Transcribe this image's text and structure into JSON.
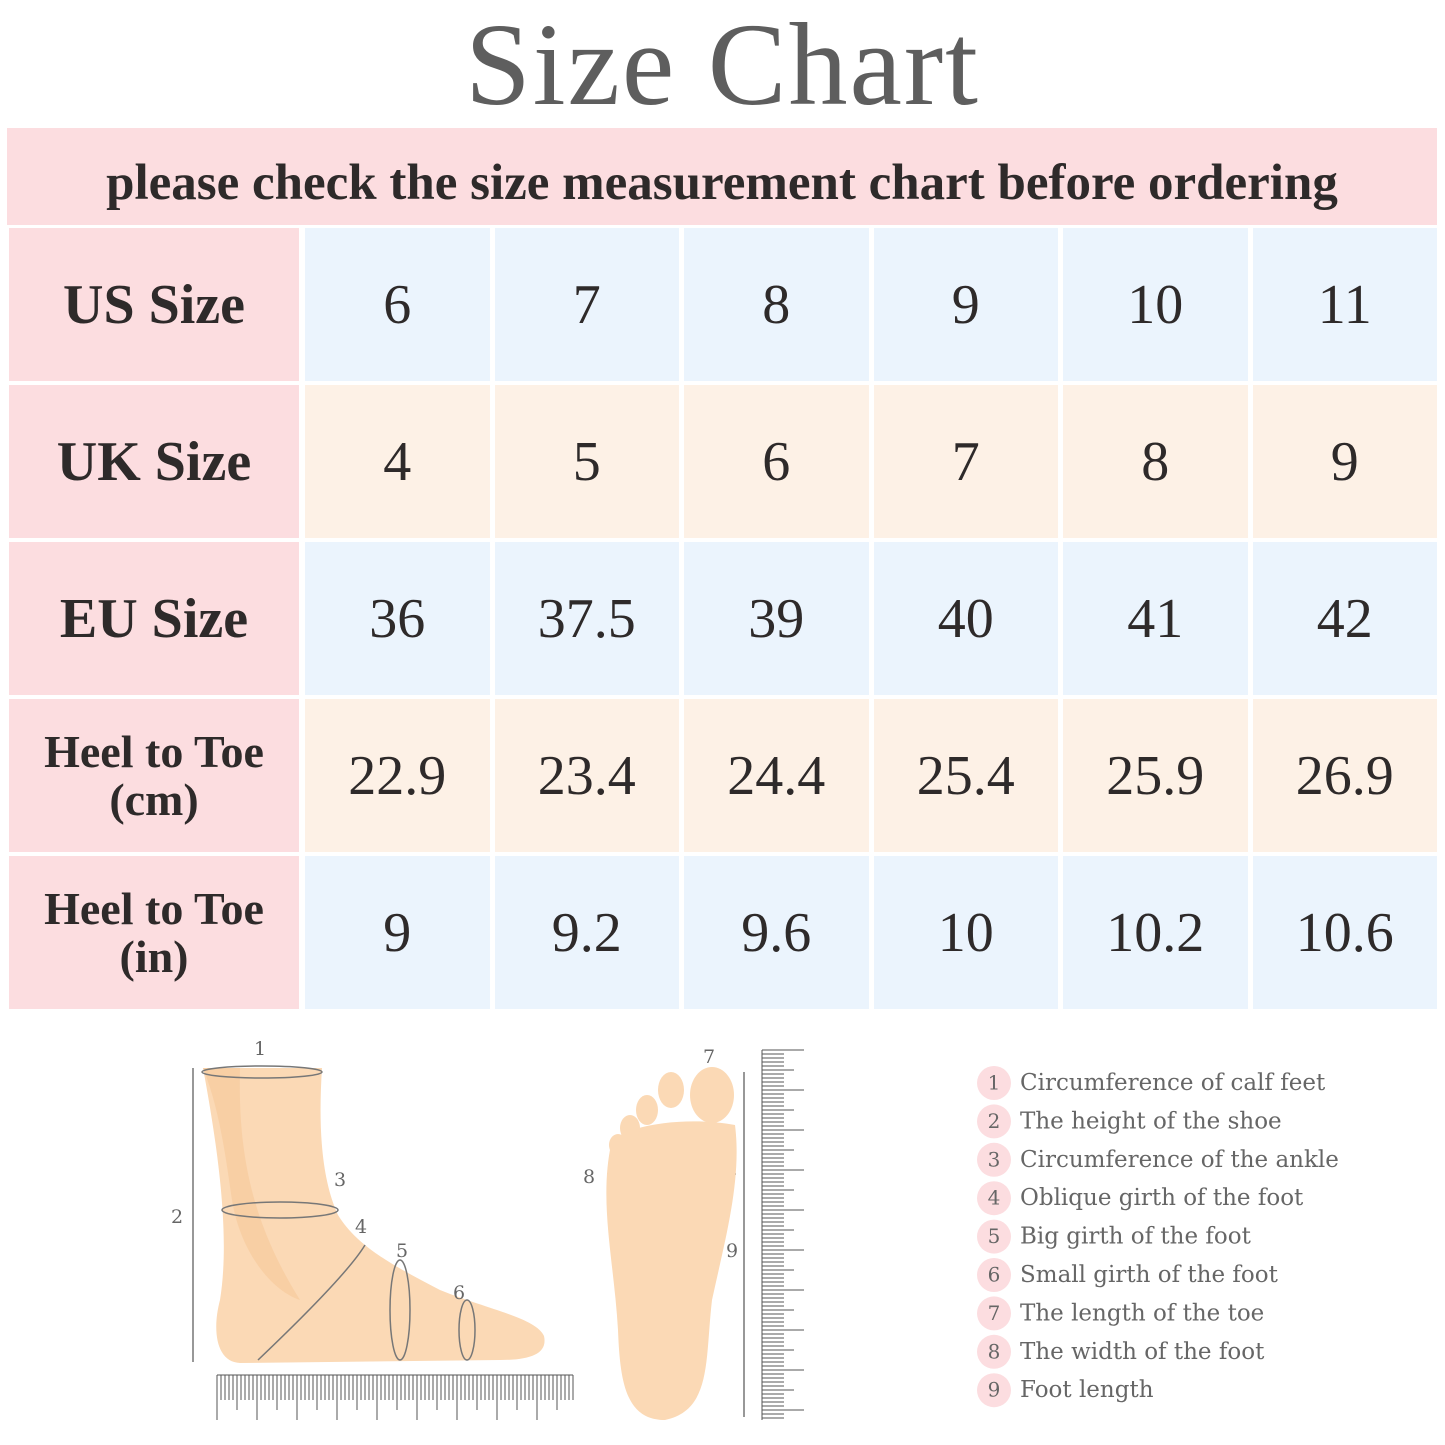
{
  "title": "Size  Chart",
  "subtitle": "please check the size measurement chart before ordering",
  "table": {
    "rows": [
      {
        "label": "US Size",
        "values": [
          "6",
          "7",
          "8",
          "9",
          "10",
          "11"
        ]
      },
      {
        "label": "UK Size",
        "values": [
          "4",
          "5",
          "6",
          "7",
          "8",
          "9"
        ]
      },
      {
        "label": "EU Size",
        "values": [
          "36",
          "37.5",
          "39",
          "40",
          "41",
          "42"
        ]
      },
      {
        "label": "Heel to Toe (cm)",
        "values": [
          "22.9",
          "23.4",
          "24.4",
          "25.4",
          "25.9",
          "26.9"
        ]
      },
      {
        "label": "Heel to Toe (in)",
        "values": [
          "9",
          "9.2",
          "9.6",
          "10",
          "10.2",
          "10.6"
        ]
      }
    ]
  },
  "legend": [
    {
      "number": "1",
      "text": "Circumference of calf feet"
    },
    {
      "number": "2",
      "text": "The height of the shoe"
    },
    {
      "number": "3",
      "text": "Circumference of the ankle"
    },
    {
      "number": "4",
      "text": "Oblique girth of the foot"
    },
    {
      "number": "5",
      "text": "Big girth of the foot"
    },
    {
      "number": "6",
      "text": "Small girth of the foot"
    },
    {
      "number": "7",
      "text": "The length of the toe"
    },
    {
      "number": "8",
      "text": "The width of the foot"
    },
    {
      "number": "9",
      "text": "Foot length"
    }
  ]
}
